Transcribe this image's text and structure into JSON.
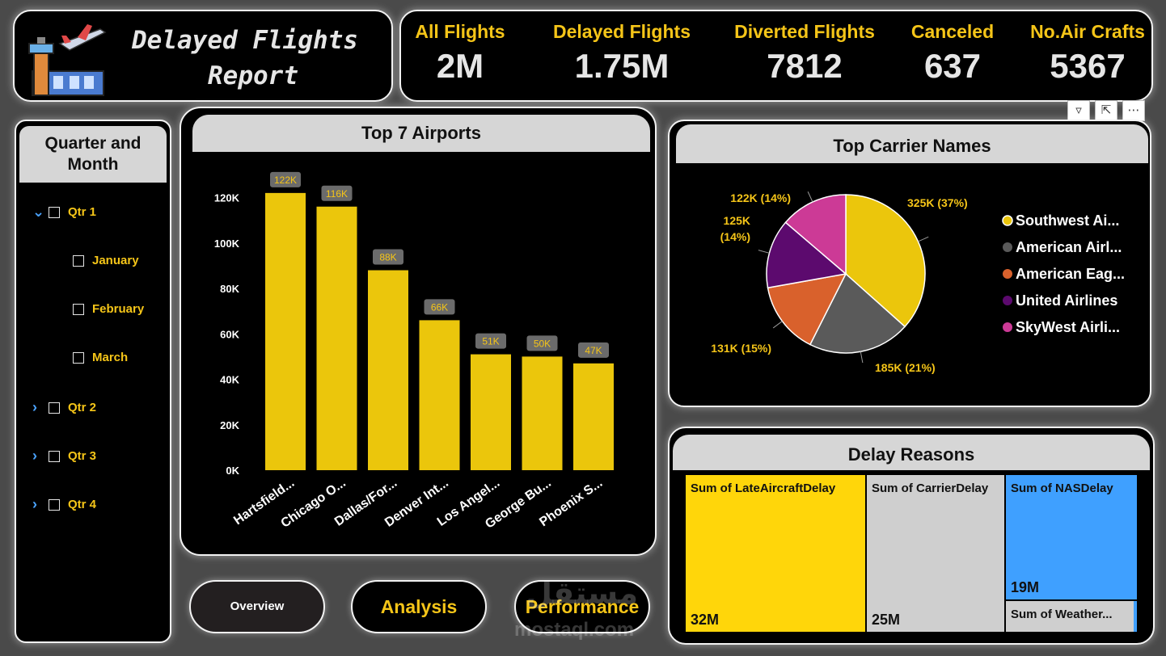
{
  "report": {
    "title_line1": "Delayed Flights",
    "title_line2": "Report"
  },
  "kpis": [
    {
      "label": "All Flights",
      "value": "2M"
    },
    {
      "label": "Delayed Flights",
      "value": "1.75M"
    },
    {
      "label": "Diverted Flights",
      "value": "7812"
    },
    {
      "label": "Canceled",
      "value": "637"
    },
    {
      "label": "No.Air Crafts",
      "value": "5367"
    }
  ],
  "slicer": {
    "title": "Quarter and Month",
    "items": [
      {
        "label": "Qtr 1",
        "level": 0,
        "expanded": true
      },
      {
        "label": "January",
        "level": 1
      },
      {
        "label": "February",
        "level": 1
      },
      {
        "label": "March",
        "level": 1
      },
      {
        "label": "Qtr 2",
        "level": 0,
        "expanded": false
      },
      {
        "label": "Qtr 3",
        "level": 0,
        "expanded": false
      },
      {
        "label": "Qtr 4",
        "level": 0,
        "expanded": false
      }
    ]
  },
  "chart_data": [
    {
      "type": "bar",
      "title": "Top 7 Airports",
      "categories": [
        "Hartsfield...",
        "Chicago O...",
        "Dallas/For...",
        "Denver Int...",
        "Los Angel...",
        "George Bu...",
        "Phoenix S..."
      ],
      "values": [
        122,
        116,
        88,
        66,
        51,
        50,
        47
      ],
      "data_labels": [
        "122K",
        "116K",
        "88K",
        "66K",
        "51K",
        "50K",
        "47K"
      ],
      "yticks": [
        "0K",
        "20K",
        "40K",
        "60K",
        "80K",
        "100K",
        "120K"
      ],
      "ylim": [
        0,
        128
      ],
      "color": "#ebc60c"
    },
    {
      "type": "pie",
      "title": "Top Carrier Names",
      "slices": [
        {
          "name": "Southwest Ai...",
          "value": 325,
          "label": "325K (37%)",
          "color": "#ebc60c"
        },
        {
          "name": "American Airl...",
          "value": 185,
          "label": "185K (21%)",
          "color": "#5a5a5a"
        },
        {
          "name": "American Eag...",
          "value": 131,
          "label": "131K (15%)",
          "color": "#d9612c"
        },
        {
          "name": "United Airlines",
          "value": 125,
          "label": "125K (14%)",
          "color": "#5c0a6e"
        },
        {
          "name": "SkyWest Airli...",
          "value": 122,
          "label": "122K (14%)",
          "color": "#cc3a96"
        }
      ],
      "legend": "right"
    },
    {
      "type": "treemap",
      "title": "Delay Reasons",
      "tiles": [
        {
          "name": "Sum of LateAircraftDelay",
          "value": 32,
          "label": "32M",
          "color": "#ffd60a"
        },
        {
          "name": "Sum of CarrierDelay",
          "value": 25,
          "label": "25M",
          "color": "#cfcfcf"
        },
        {
          "name": "Sum of NASDelay",
          "value": 19,
          "label": "19M",
          "color": "#3fa0ff"
        },
        {
          "name": "Sum of Weather...",
          "value": 2,
          "label": "",
          "color": "#cfcfcf"
        }
      ]
    }
  ],
  "nav": {
    "overview": "Overview",
    "analysis": "Analysis",
    "performance": "Performance"
  },
  "toolbar": {
    "filter_icon": "filter-icon",
    "focus_icon": "focus-mode-icon",
    "more_icon": "more-options-icon"
  },
  "watermark": {
    "arabic": "مستقل",
    "latin": "mostaql.com"
  }
}
